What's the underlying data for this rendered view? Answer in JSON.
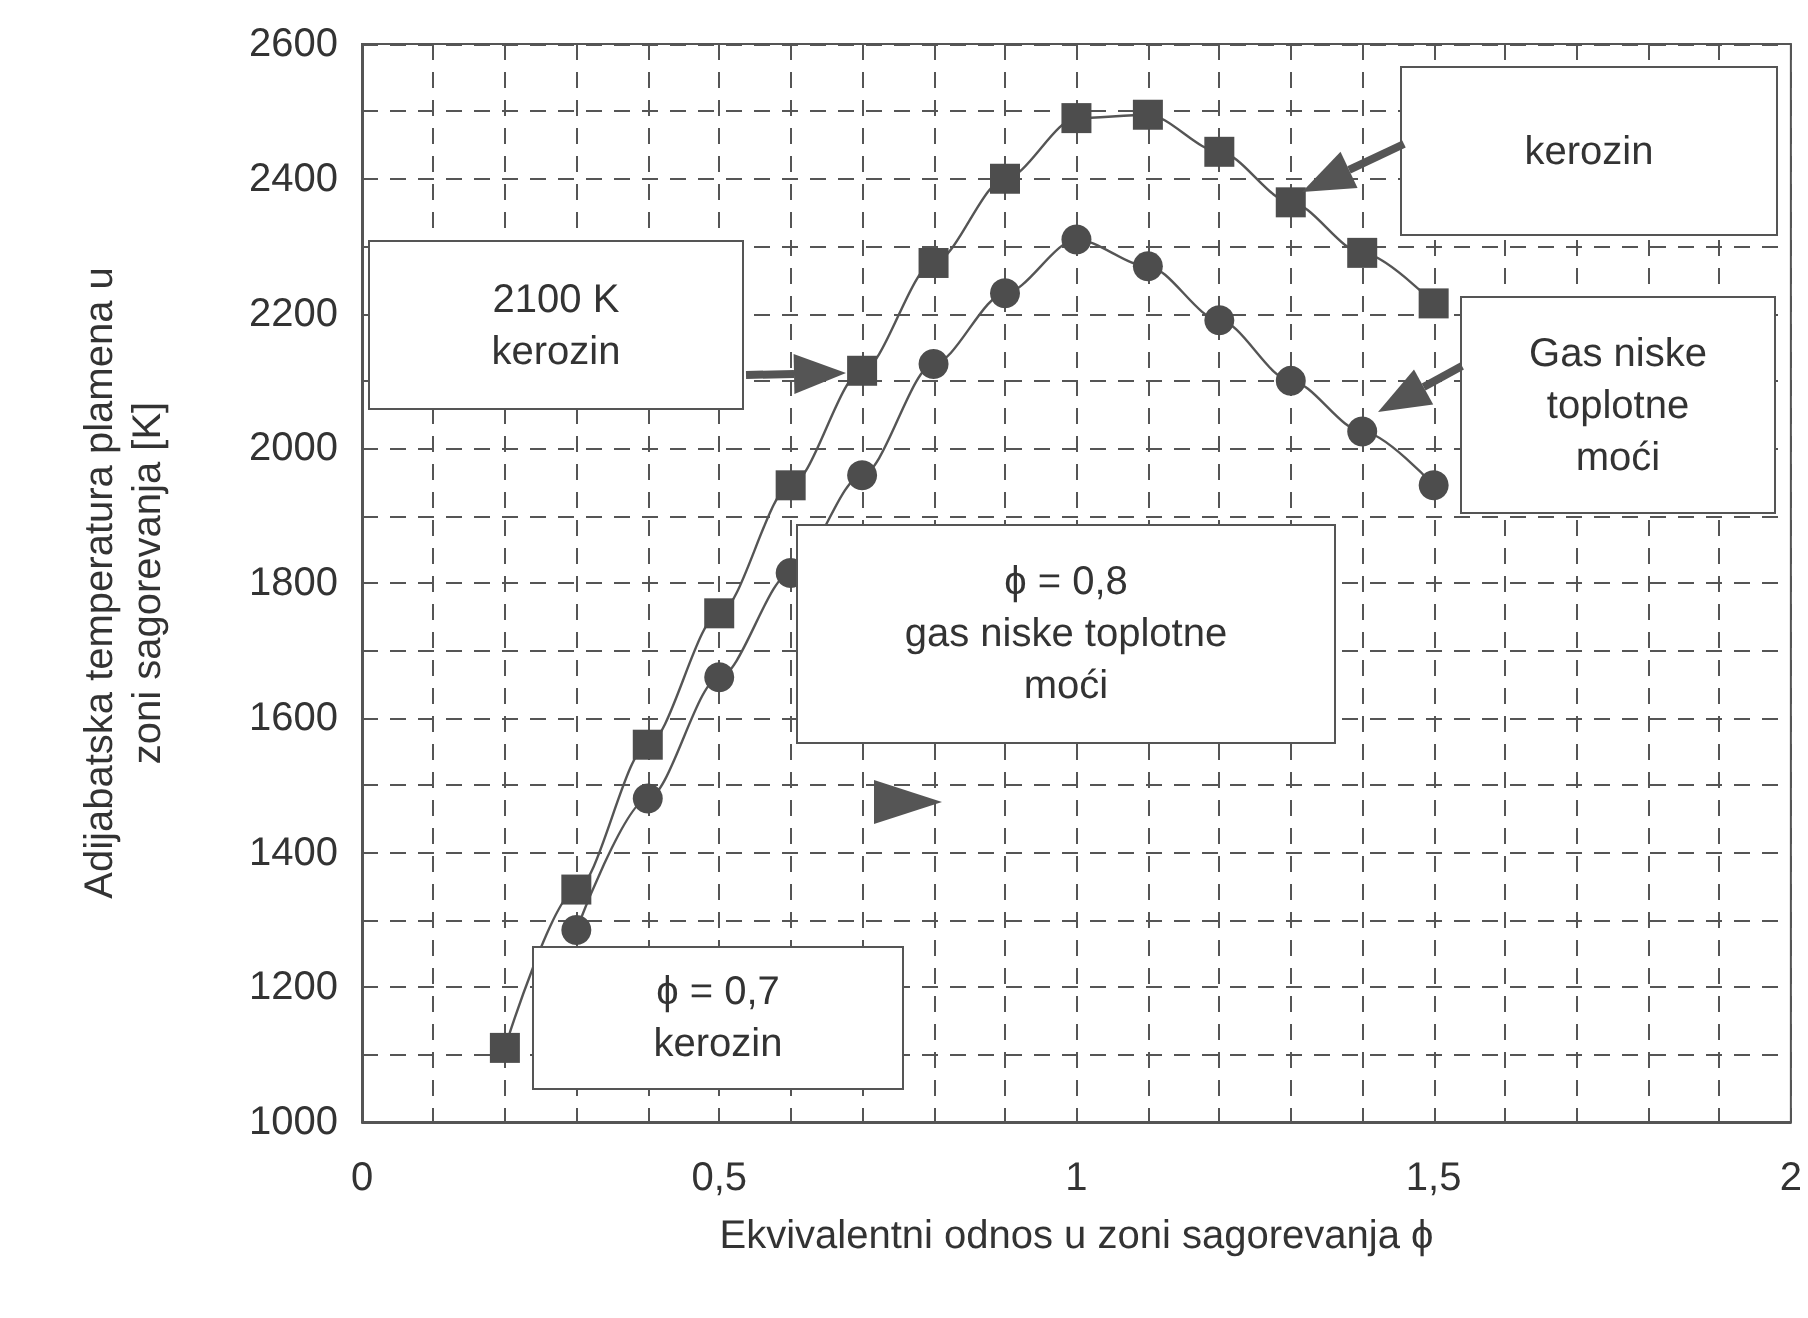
{
  "chart_data": {
    "type": "line",
    "xlabel": "Ekvivalentni odnos u zoni sagorevanja ϕ",
    "ylabel": "Adijabatska temperatura plamena u\nzoni sagorevanja [K]",
    "xlim": [
      0,
      2
    ],
    "xticks": [
      0,
      {
        "value": 0.5,
        "label": "0,5"
      },
      1,
      {
        "value": 1.5,
        "label": "1,5"
      },
      2
    ],
    "ylim": [
      1000,
      2600
    ],
    "yticks": [
      1000,
      1200,
      1400,
      1600,
      1800,
      2000,
      2200,
      2400,
      2600
    ],
    "grid": true,
    "line_style": "solid",
    "series": [
      {
        "color": "#4d4d4d",
        "marker": "square",
        "x": [
          0.2,
          0.3,
          0.4,
          0.5,
          0.6,
          0.7,
          0.8,
          0.9,
          1.0,
          1.1,
          1.2,
          1.3,
          1.4,
          1.5
        ],
        "values": [
          1110,
          1345,
          1560,
          1755,
          1945,
          2115,
          2275,
          2400,
          2490,
          2495,
          2440,
          2365,
          2290,
          2215
        ]
      },
      {
        "color": "#4d4d4d",
        "marker": "circle",
        "x": [
          0.3,
          0.4,
          0.5,
          0.6,
          0.7,
          0.8,
          0.9,
          1.0,
          1.1,
          1.2,
          1.3,
          1.4,
          1.5
        ],
        "values": [
          1285,
          1480,
          1660,
          1815,
          1960,
          2125,
          2230,
          2310,
          2270,
          2190,
          2100,
          2025,
          1945
        ]
      }
    ],
    "annotations": [
      "2100 K\nkerozin",
      "kerozin",
      "Gas niske\ntoplotne\nmoći",
      "ϕ = 0,8\ngas niske toplotne\nmoći",
      "ϕ = 0,7\nkerozin"
    ]
  }
}
